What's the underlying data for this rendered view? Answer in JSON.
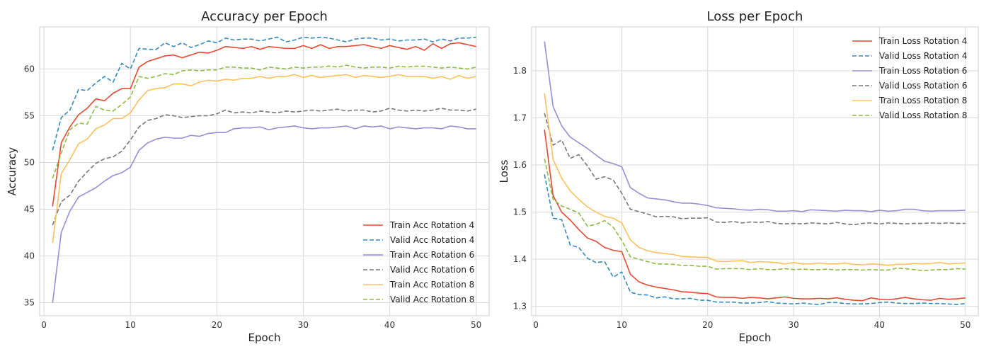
{
  "charts": [
    {
      "type": "line",
      "title": "Accuracy per Epoch",
      "xlabel": "Epoch",
      "ylabel": "Accuracy",
      "xlim": [
        -0.5,
        51.5
      ],
      "ylim": [
        33.6,
        64.5
      ],
      "xticks": [
        0,
        10,
        20,
        30,
        40,
        50
      ],
      "yticks": [
        35,
        40,
        45,
        50,
        55,
        60
      ],
      "grid": true,
      "legend_position": "bottom-right",
      "x": [
        1,
        2,
        3,
        4,
        5,
        6,
        7,
        8,
        9,
        10,
        11,
        12,
        13,
        14,
        15,
        16,
        17,
        18,
        19,
        20,
        21,
        22,
        23,
        24,
        25,
        26,
        27,
        28,
        29,
        30,
        31,
        32,
        33,
        34,
        35,
        36,
        37,
        38,
        39,
        40,
        41,
        42,
        43,
        44,
        45,
        46,
        47,
        48,
        49,
        50
      ],
      "series": [
        {
          "name": "Train Acc Rotation 4",
          "color": "#E24A33",
          "dash": "solid",
          "values": [
            45.3,
            52.1,
            53.8,
            55.1,
            55.8,
            56.8,
            56.6,
            57.4,
            57.9,
            57.9,
            60.2,
            60.8,
            61.1,
            61.4,
            61.5,
            61.2,
            61.5,
            61.8,
            61.7,
            62.0,
            62.4,
            62.3,
            62.2,
            62.4,
            62.1,
            62.4,
            62.3,
            62.2,
            62.2,
            62.5,
            62.2,
            62.6,
            62.2,
            62.4,
            62.4,
            62.5,
            62.6,
            62.4,
            62.2,
            62.5,
            62.3,
            62.1,
            62.4,
            62.0,
            62.7,
            62.2,
            62.7,
            62.8,
            62.6,
            62.4
          ]
        },
        {
          "name": "Valid Acc Rotation 4",
          "color": "#348ABD",
          "dash": "dashed",
          "values": [
            51.3,
            54.8,
            55.6,
            57.8,
            57.7,
            58.5,
            59.2,
            58.6,
            60.6,
            60.0,
            62.2,
            62.1,
            62.1,
            62.8,
            62.4,
            62.8,
            62.3,
            62.6,
            63.0,
            62.8,
            63.3,
            63.1,
            63.2,
            63.2,
            63.0,
            63.2,
            63.4,
            62.9,
            63.1,
            63.4,
            63.3,
            63.4,
            63.3,
            63.1,
            62.9,
            63.2,
            63.3,
            63.3,
            63.1,
            63.2,
            63.0,
            63.1,
            63.1,
            63.2,
            62.9,
            63.2,
            63.0,
            63.3,
            63.3,
            63.4
          ]
        },
        {
          "name": "Train Acc Rotation 6",
          "color": "#988ED5",
          "dash": "solid",
          "values": [
            35.0,
            42.5,
            44.8,
            46.3,
            46.8,
            47.3,
            48.0,
            48.6,
            48.9,
            49.5,
            51.3,
            52.1,
            52.5,
            52.7,
            52.6,
            52.6,
            52.9,
            52.8,
            53.1,
            53.2,
            53.2,
            53.6,
            53.7,
            53.7,
            53.8,
            53.5,
            53.7,
            53.8,
            53.9,
            53.7,
            53.6,
            53.7,
            53.7,
            53.8,
            53.9,
            53.6,
            53.9,
            53.8,
            53.9,
            53.6,
            53.8,
            53.7,
            53.6,
            53.7,
            53.7,
            53.6,
            53.9,
            53.8,
            53.6,
            53.6
          ]
        },
        {
          "name": "Valid Acc Rotation 6",
          "color": "#777777",
          "dash": "dashed",
          "values": [
            43.3,
            45.8,
            46.5,
            48.0,
            49.0,
            49.9,
            50.4,
            50.6,
            51.2,
            52.4,
            53.8,
            54.5,
            54.7,
            55.1,
            55.0,
            54.8,
            54.9,
            55.0,
            55.0,
            55.2,
            55.6,
            55.3,
            55.4,
            55.3,
            55.5,
            55.4,
            55.3,
            55.5,
            55.4,
            55.5,
            55.6,
            55.5,
            55.6,
            55.7,
            55.5,
            55.6,
            55.6,
            55.4,
            55.5,
            55.8,
            55.6,
            55.5,
            55.6,
            55.5,
            55.6,
            55.8,
            55.6,
            55.6,
            55.5,
            55.7
          ]
        },
        {
          "name": "Train Acc Rotation 8",
          "color": "#FBC15E",
          "dash": "solid",
          "values": [
            41.4,
            48.8,
            50.3,
            52.0,
            52.5,
            53.6,
            54.0,
            54.7,
            54.7,
            55.3,
            56.7,
            57.7,
            57.9,
            58.0,
            58.4,
            58.4,
            58.2,
            58.6,
            58.8,
            58.7,
            58.9,
            58.8,
            59.0,
            59.0,
            59.2,
            59.0,
            59.2,
            59.2,
            59.4,
            59.1,
            59.3,
            59.1,
            59.2,
            59.3,
            59.4,
            59.1,
            59.3,
            59.2,
            59.1,
            59.2,
            59.4,
            59.2,
            59.2,
            59.2,
            59.0,
            59.2,
            58.9,
            59.3,
            59.0,
            59.2
          ]
        },
        {
          "name": "Valid Acc Rotation 8",
          "color": "#8EBA42",
          "dash": "dashed",
          "values": [
            48.3,
            51.0,
            53.5,
            54.2,
            54.1,
            56.0,
            55.6,
            55.5,
            56.2,
            57.0,
            59.2,
            59.0,
            59.2,
            59.5,
            59.4,
            59.8,
            59.9,
            59.8,
            59.9,
            59.9,
            60.2,
            60.2,
            60.1,
            60.1,
            59.9,
            60.2,
            60.1,
            60.0,
            60.2,
            60.1,
            60.2,
            60.2,
            60.3,
            60.2,
            60.4,
            60.2,
            60.1,
            60.2,
            60.2,
            60.1,
            60.3,
            60.2,
            60.3,
            60.3,
            60.2,
            60.1,
            60.2,
            60.1,
            60.0,
            60.2
          ]
        }
      ]
    },
    {
      "type": "line",
      "title": "Loss per Epoch",
      "xlabel": "Epoch",
      "ylabel": "Loss",
      "xlim": [
        -0.5,
        51.5
      ],
      "ylim": [
        1.28,
        1.893
      ],
      "xticks": [
        0,
        10,
        20,
        30,
        40,
        50
      ],
      "yticks": [
        1.3,
        1.4,
        1.5,
        1.6,
        1.7,
        1.8
      ],
      "grid": true,
      "legend_position": "top-right",
      "x": [
        1,
        2,
        3,
        4,
        5,
        6,
        7,
        8,
        9,
        10,
        11,
        12,
        13,
        14,
        15,
        16,
        17,
        18,
        19,
        20,
        21,
        22,
        23,
        24,
        25,
        26,
        27,
        28,
        29,
        30,
        31,
        32,
        33,
        34,
        35,
        36,
        37,
        38,
        39,
        40,
        41,
        42,
        43,
        44,
        45,
        46,
        47,
        48,
        49,
        50
      ],
      "series": [
        {
          "name": "Train Loss Rotation 4",
          "color": "#E24A33",
          "dash": "solid",
          "values": [
            1.675,
            1.535,
            1.5,
            1.483,
            1.463,
            1.445,
            1.438,
            1.425,
            1.419,
            1.416,
            1.368,
            1.352,
            1.345,
            1.341,
            1.338,
            1.335,
            1.331,
            1.33,
            1.328,
            1.327,
            1.32,
            1.319,
            1.319,
            1.317,
            1.319,
            1.318,
            1.316,
            1.318,
            1.32,
            1.317,
            1.316,
            1.316,
            1.317,
            1.316,
            1.318,
            1.315,
            1.313,
            1.312,
            1.318,
            1.315,
            1.314,
            1.316,
            1.319,
            1.316,
            1.314,
            1.313,
            1.317,
            1.315,
            1.316,
            1.318
          ]
        },
        {
          "name": "Valid Loss Rotation 4",
          "color": "#348ABD",
          "dash": "dashed",
          "values": [
            1.58,
            1.487,
            1.484,
            1.43,
            1.425,
            1.402,
            1.393,
            1.395,
            1.362,
            1.373,
            1.33,
            1.325,
            1.324,
            1.318,
            1.32,
            1.316,
            1.316,
            1.317,
            1.313,
            1.313,
            1.309,
            1.309,
            1.309,
            1.307,
            1.307,
            1.308,
            1.31,
            1.307,
            1.306,
            1.305,
            1.307,
            1.305,
            1.304,
            1.308,
            1.308,
            1.306,
            1.305,
            1.305,
            1.306,
            1.308,
            1.309,
            1.307,
            1.306,
            1.306,
            1.307,
            1.306,
            1.306,
            1.305,
            1.304,
            1.306
          ]
        },
        {
          "name": "Train Loss Rotation 6",
          "color": "#988ED5",
          "dash": "solid",
          "values": [
            1.862,
            1.724,
            1.683,
            1.659,
            1.647,
            1.635,
            1.621,
            1.608,
            1.603,
            1.596,
            1.552,
            1.54,
            1.53,
            1.528,
            1.526,
            1.522,
            1.519,
            1.519,
            1.517,
            1.514,
            1.509,
            1.508,
            1.507,
            1.505,
            1.504,
            1.506,
            1.505,
            1.502,
            1.502,
            1.503,
            1.501,
            1.505,
            1.504,
            1.503,
            1.502,
            1.504,
            1.503,
            1.503,
            1.501,
            1.504,
            1.502,
            1.503,
            1.506,
            1.506,
            1.503,
            1.502,
            1.503,
            1.503,
            1.503,
            1.504
          ]
        },
        {
          "name": "Valid Loss Rotation 6",
          "color": "#777777",
          "dash": "dashed",
          "values": [
            1.71,
            1.642,
            1.653,
            1.614,
            1.622,
            1.598,
            1.57,
            1.575,
            1.568,
            1.54,
            1.506,
            1.501,
            1.496,
            1.49,
            1.491,
            1.49,
            1.486,
            1.487,
            1.487,
            1.488,
            1.479,
            1.478,
            1.48,
            1.477,
            1.479,
            1.478,
            1.48,
            1.476,
            1.475,
            1.476,
            1.475,
            1.477,
            1.476,
            1.475,
            1.478,
            1.475,
            1.473,
            1.476,
            1.477,
            1.475,
            1.477,
            1.476,
            1.475,
            1.476,
            1.476,
            1.477,
            1.476,
            1.477,
            1.476,
            1.476
          ]
        },
        {
          "name": "Train Loss Rotation 8",
          "color": "#FBC15E",
          "dash": "solid",
          "values": [
            1.752,
            1.612,
            1.572,
            1.545,
            1.527,
            1.511,
            1.5,
            1.491,
            1.487,
            1.477,
            1.441,
            1.425,
            1.418,
            1.414,
            1.412,
            1.41,
            1.406,
            1.405,
            1.404,
            1.404,
            1.396,
            1.395,
            1.396,
            1.397,
            1.393,
            1.395,
            1.394,
            1.393,
            1.39,
            1.393,
            1.39,
            1.39,
            1.392,
            1.39,
            1.39,
            1.392,
            1.389,
            1.388,
            1.39,
            1.389,
            1.387,
            1.389,
            1.389,
            1.391,
            1.39,
            1.391,
            1.393,
            1.39,
            1.391,
            1.392
          ]
        },
        {
          "name": "Valid Loss Rotation 8",
          "color": "#8EBA42",
          "dash": "dashed",
          "values": [
            1.613,
            1.527,
            1.513,
            1.506,
            1.498,
            1.47,
            1.474,
            1.482,
            1.468,
            1.44,
            1.405,
            1.4,
            1.395,
            1.39,
            1.39,
            1.389,
            1.387,
            1.387,
            1.385,
            1.385,
            1.379,
            1.38,
            1.38,
            1.38,
            1.378,
            1.38,
            1.378,
            1.378,
            1.38,
            1.378,
            1.379,
            1.378,
            1.378,
            1.379,
            1.377,
            1.378,
            1.378,
            1.377,
            1.378,
            1.377,
            1.377,
            1.381,
            1.38,
            1.378,
            1.376,
            1.377,
            1.378,
            1.378,
            1.38,
            1.379
          ]
        }
      ]
    }
  ]
}
